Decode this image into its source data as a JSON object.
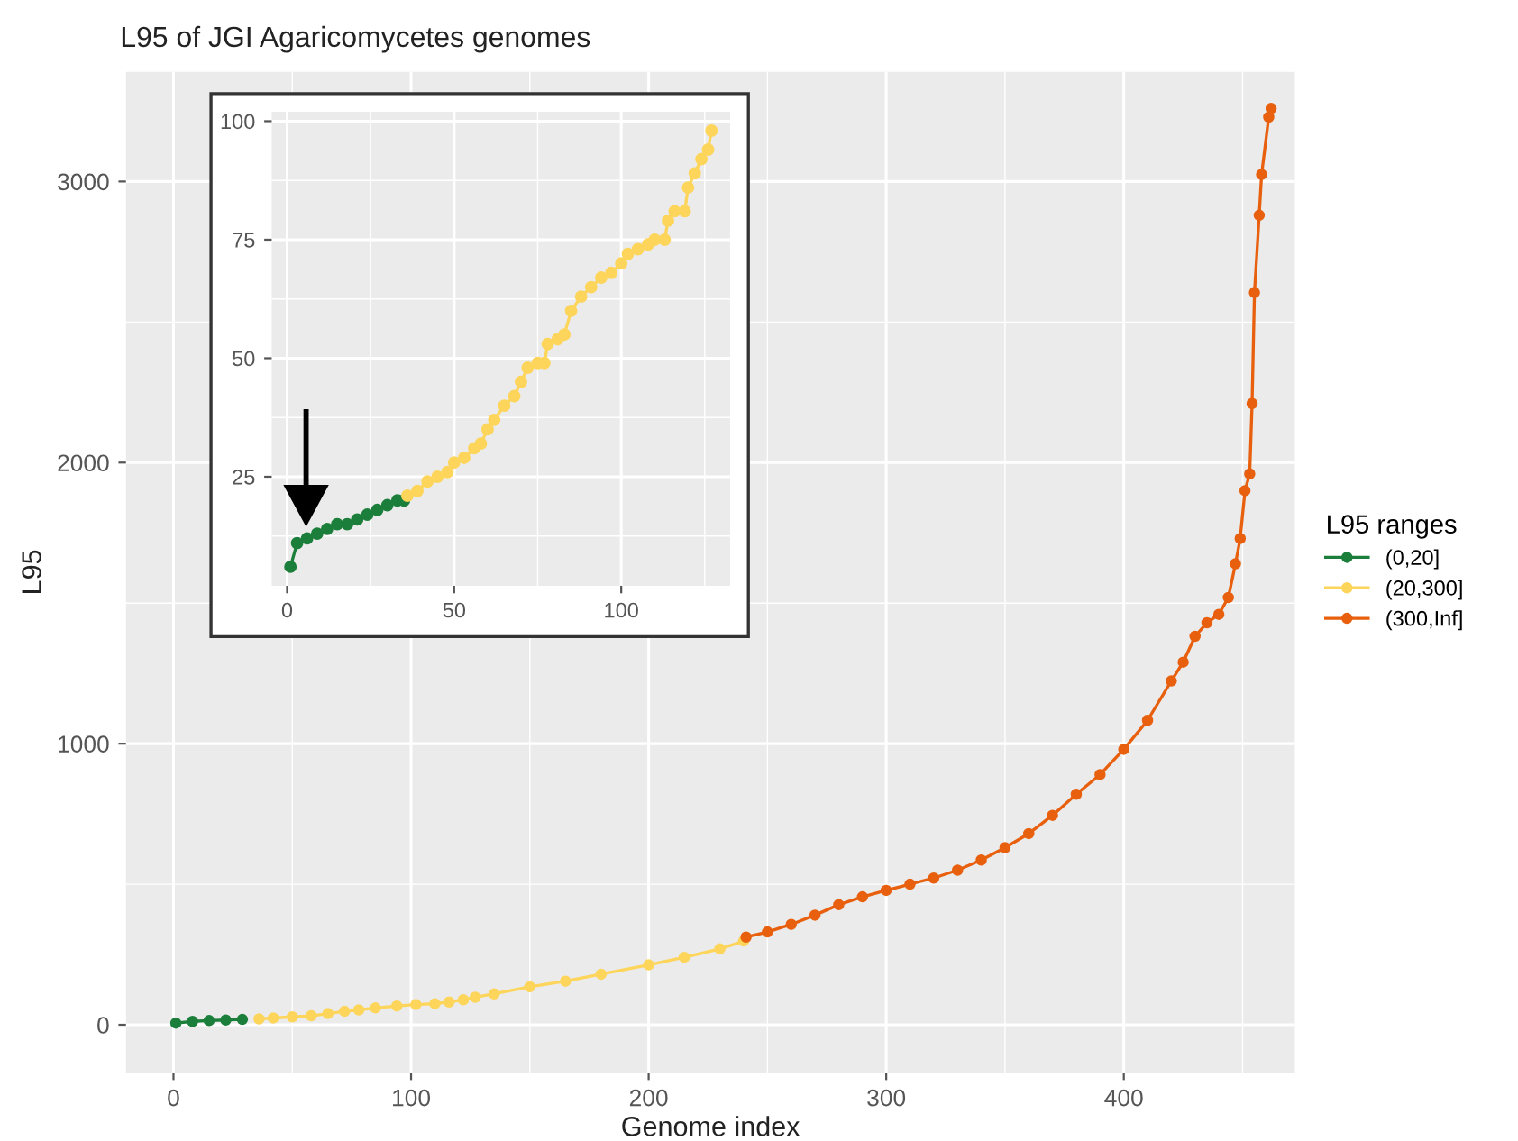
{
  "chart_data": [
    {
      "type": "line",
      "title": "L95 of JGI Agaricomycetes genomes",
      "xlabel": "Genome index",
      "ylabel": "L95",
      "legend_title": "L95 ranges",
      "legend": "right",
      "grid": true,
      "marker": "circle",
      "line_style": "solid",
      "xlim": [
        -20,
        472
      ],
      "ylim": [
        -170,
        3390
      ],
      "xticks": [
        0,
        100,
        200,
        300,
        400
      ],
      "yticks": [
        0,
        1000,
        2000,
        3000
      ],
      "series": [
        {
          "name": "(0,20]",
          "color": "#1b7f3b",
          "x": [
            1,
            8,
            15,
            22,
            29
          ],
          "values": [
            6,
            12,
            15,
            17,
            19
          ]
        },
        {
          "name": "(20,300]",
          "color": "#fdd55b",
          "x": [
            36,
            42,
            50,
            58,
            65,
            72,
            78,
            85,
            94,
            102,
            110,
            116,
            122,
            127,
            135,
            150,
            165,
            180,
            200,
            215,
            230,
            240
          ],
          "values": [
            21,
            24,
            28,
            32,
            40,
            48,
            53,
            60,
            67,
            72,
            75,
            81,
            89,
            98,
            110,
            135,
            155,
            180,
            213,
            240,
            270,
            298
          ]
        },
        {
          "name": "(300,Inf]",
          "color": "#e8600e",
          "x": [
            241,
            250,
            260,
            270,
            280,
            290,
            300,
            310,
            320,
            330,
            340,
            350,
            360,
            370,
            380,
            390,
            400,
            410,
            420,
            425,
            430,
            435,
            440,
            444,
            447,
            449,
            451,
            453,
            454,
            455,
            457,
            458,
            461,
            462
          ],
          "values": [
            312,
            330,
            357,
            390,
            427,
            455,
            478,
            500,
            522,
            550,
            586,
            630,
            680,
            745,
            820,
            890,
            980,
            1083,
            1223,
            1290,
            1382,
            1430,
            1460,
            1520,
            1640,
            1730,
            1900,
            1960,
            2210,
            2605,
            2880,
            3025,
            3229,
            3260
          ]
        }
      ]
    },
    {
      "type": "line",
      "legend": false,
      "grid": true,
      "marker": "circle",
      "line_style": "solid",
      "xlim": [
        -4.6,
        132.6
      ],
      "ylim": [
        2,
        102
      ],
      "xticks": [
        0,
        50,
        100
      ],
      "yticks": [
        25,
        50,
        75,
        100
      ],
      "series": [
        {
          "color": "#1b7f3b",
          "x": [
            1,
            3,
            6,
            9,
            12,
            15,
            18,
            21,
            24,
            27,
            30,
            33,
            35
          ],
          "values": [
            6,
            11,
            12,
            13,
            14,
            15,
            15,
            16,
            17,
            18,
            19,
            20,
            20
          ]
        },
        {
          "color": "#fdd55b",
          "x": [
            36,
            39,
            42,
            45,
            48,
            50,
            53,
            56,
            58,
            60,
            62,
            65,
            68,
            70,
            72,
            75,
            77,
            78,
            81,
            83,
            85,
            88,
            91,
            94,
            97,
            100,
            102,
            105,
            108,
            110,
            113,
            114,
            116,
            119,
            120,
            122,
            124,
            126,
            127
          ],
          "values": [
            21,
            22,
            24,
            25,
            26,
            28,
            29,
            31,
            32,
            35,
            37,
            40,
            42,
            45,
            48,
            49,
            49,
            53,
            54,
            55,
            60,
            63,
            65,
            67,
            68,
            70,
            72,
            73,
            74,
            75,
            75,
            79,
            81,
            81,
            86,
            89,
            92,
            94,
            98
          ]
        }
      ]
    }
  ]
}
